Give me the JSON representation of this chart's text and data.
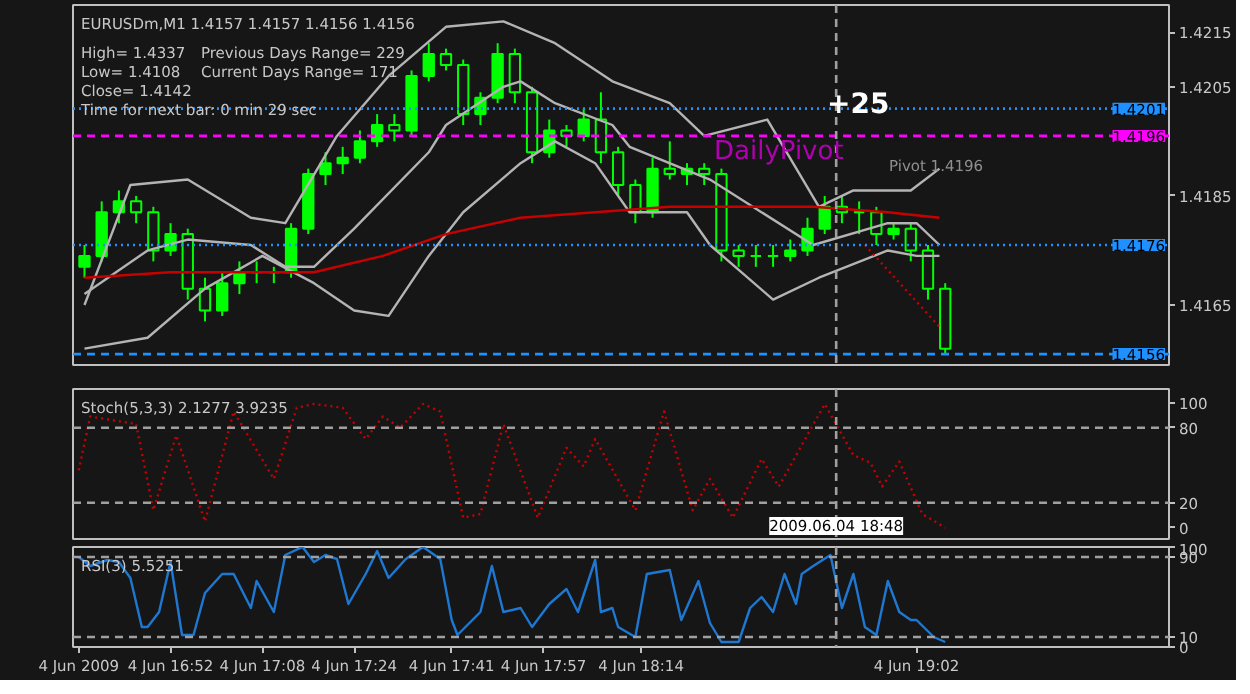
{
  "chart_data": [
    {
      "type": "candlestick",
      "title": "EURUSDm,M1  1.4157 1.4157 1.4156 1.4156",
      "color": "#00ff00",
      "annotations": [
        "High= 1.4337",
        "Previous Days Range= 229",
        "Low= 1.4108",
        "Current Days Range= 171",
        "Close= 1.4142",
        "Time for next bar: 0 min 29 sec",
        "+25",
        "Pivot 1.4196",
        {
          "text": "DailyPivot",
          "x": "2009-06-04T18:38",
          "y": 1.4193
        }
      ],
      "x": [
        "2009-06-04T16:37",
        "2009-06-04T16:40",
        "2009-06-04T16:43",
        "2009-06-04T16:46",
        "2009-06-04T16:49",
        "2009-06-04T16:52",
        "2009-06-04T16:55",
        "2009-06-04T16:58",
        "2009-06-04T17:01",
        "2009-06-04T17:04",
        "2009-06-04T17:07",
        "2009-06-04T17:10",
        "2009-06-04T17:13",
        "2009-06-04T17:16",
        "2009-06-04T17:19",
        "2009-06-04T17:22",
        "2009-06-04T17:25",
        "2009-06-04T17:28",
        "2009-06-04T17:31",
        "2009-06-04T17:34",
        "2009-06-04T17:37",
        "2009-06-04T17:40",
        "2009-06-04T17:43",
        "2009-06-04T17:46",
        "2009-06-04T17:49",
        "2009-06-04T17:52",
        "2009-06-04T17:55",
        "2009-06-04T17:58",
        "2009-06-04T18:01",
        "2009-06-04T18:04",
        "2009-06-04T18:07",
        "2009-06-04T18:10",
        "2009-06-04T18:13",
        "2009-06-04T18:16",
        "2009-06-04T18:19",
        "2009-06-04T18:22",
        "2009-06-04T18:25",
        "2009-06-04T18:28",
        "2009-06-04T18:31",
        "2009-06-04T18:34",
        "2009-06-04T18:37",
        "2009-06-04T18:40",
        "2009-06-04T18:43",
        "2009-06-04T18:46",
        "2009-06-04T18:49",
        "2009-06-04T18:52",
        "2009-06-04T18:55",
        "2009-06-04T18:58",
        "2009-06-04T19:01",
        "2009-06-04T19:04",
        "2009-06-04T19:07"
      ],
      "ohlc": [
        [
          1.4172,
          1.4176,
          1.417,
          1.4174
        ],
        [
          1.4174,
          1.4184,
          1.4173,
          1.4182
        ],
        [
          1.4182,
          1.4186,
          1.418,
          1.4184
        ],
        [
          1.4184,
          1.4185,
          1.418,
          1.4182
        ],
        [
          1.4182,
          1.4183,
          1.4173,
          1.4175
        ],
        [
          1.4175,
          1.418,
          1.4174,
          1.4178
        ],
        [
          1.4178,
          1.4179,
          1.4166,
          1.4168
        ],
        [
          1.4168,
          1.417,
          1.4162,
          1.4164
        ],
        [
          1.4164,
          1.4171,
          1.4163,
          1.4169
        ],
        [
          1.4169,
          1.4173,
          1.4167,
          1.4171
        ],
        [
          1.4171,
          1.4173,
          1.4169,
          1.4171
        ],
        [
          1.4171,
          1.4172,
          1.4169,
          1.4171
        ],
        [
          1.4171,
          1.418,
          1.417,
          1.4179
        ],
        [
          1.4179,
          1.419,
          1.4178,
          1.4189
        ],
        [
          1.4189,
          1.4193,
          1.4187,
          1.4191
        ],
        [
          1.4191,
          1.4194,
          1.4189,
          1.4192
        ],
        [
          1.4192,
          1.4197,
          1.4191,
          1.4195
        ],
        [
          1.4195,
          1.42,
          1.4194,
          1.4198
        ],
        [
          1.4198,
          1.42,
          1.4195,
          1.4197
        ],
        [
          1.4197,
          1.4208,
          1.4196,
          1.4207
        ],
        [
          1.4207,
          1.4213,
          1.4206,
          1.4211
        ],
        [
          1.4211,
          1.4212,
          1.4208,
          1.4209
        ],
        [
          1.4209,
          1.421,
          1.4198,
          1.42
        ],
        [
          1.42,
          1.4204,
          1.4198,
          1.4203
        ],
        [
          1.4203,
          1.4213,
          1.4202,
          1.4211
        ],
        [
          1.4211,
          1.4212,
          1.4202,
          1.4204
        ],
        [
          1.4204,
          1.4205,
          1.4191,
          1.4193
        ],
        [
          1.4193,
          1.4199,
          1.4192,
          1.4197
        ],
        [
          1.4197,
          1.4198,
          1.4194,
          1.4196
        ],
        [
          1.4196,
          1.4201,
          1.4195,
          1.4199
        ],
        [
          1.4199,
          1.4204,
          1.4191,
          1.4193
        ],
        [
          1.4193,
          1.4194,
          1.4185,
          1.4187
        ],
        [
          1.4187,
          1.4188,
          1.418,
          1.4182
        ],
        [
          1.4182,
          1.4192,
          1.4181,
          1.419
        ],
        [
          1.419,
          1.4195,
          1.4188,
          1.4189
        ],
        [
          1.4189,
          1.4191,
          1.4187,
          1.419
        ],
        [
          1.419,
          1.4191,
          1.4187,
          1.4189
        ],
        [
          1.4189,
          1.419,
          1.4173,
          1.4175
        ],
        [
          1.4175,
          1.4176,
          1.4172,
          1.4174
        ],
        [
          1.4174,
          1.4176,
          1.4172,
          1.4174
        ],
        [
          1.4174,
          1.4176,
          1.4172,
          1.4174
        ],
        [
          1.4174,
          1.4177,
          1.4173,
          1.4175
        ],
        [
          1.4175,
          1.4181,
          1.4174,
          1.4179
        ],
        [
          1.4179,
          1.4185,
          1.4178,
          1.4183
        ],
        [
          1.4183,
          1.4185,
          1.418,
          1.4182
        ],
        [
          1.4182,
          1.4184,
          1.4178,
          1.4182
        ],
        [
          1.4182,
          1.4183,
          1.4176,
          1.4178
        ],
        [
          1.4178,
          1.418,
          1.4177,
          1.4179
        ],
        [
          1.4179,
          1.418,
          1.4173,
          1.4175
        ],
        [
          1.4175,
          1.4176,
          1.4166,
          1.4168
        ],
        [
          1.4168,
          1.4169,
          1.4156,
          1.4157
        ]
      ],
      "series": [
        {
          "type": "line",
          "color": "#b4b4b4",
          "x": [
            "2009-06-04T16:37",
            "2009-06-04T16:45",
            "2009-06-04T16:55",
            "2009-06-04T17:06",
            "2009-06-04T17:12",
            "2009-06-04T17:21",
            "2009-06-04T17:30",
            "2009-06-04T17:40",
            "2009-06-04T17:50",
            "2009-06-04T17:59",
            "2009-06-04T18:09",
            "2009-06-04T18:19",
            "2009-06-04T18:25",
            "2009-06-04T18:36",
            "2009-06-04T18:45",
            "2009-06-04T18:51",
            "2009-06-04T19:01",
            "2009-06-04T19:06"
          ],
          "values": [
            1.4165,
            1.4187,
            1.4188,
            1.4181,
            1.418,
            1.4196,
            1.4207,
            1.4216,
            1.4217,
            1.4213,
            1.4206,
            1.4202,
            1.4196,
            1.4199,
            1.4183,
            1.4186,
            1.4186,
            1.419
          ]
        },
        {
          "type": "line",
          "color": "#b4b4b4",
          "x": [
            "2009-06-04T16:37",
            "2009-06-04T16:48",
            "2009-06-04T16:55",
            "2009-06-04T17:06",
            "2009-06-04T17:12",
            "2009-06-04T17:17",
            "2009-06-04T17:24",
            "2009-06-04T17:37",
            "2009-06-04T17:40",
            "2009-06-04T17:50",
            "2009-06-04T17:53",
            "2009-06-04T17:59",
            "2009-06-04T18:09",
            "2009-06-04T18:12",
            "2009-06-04T18:26",
            "2009-06-04T18:44",
            "2009-06-04T18:57",
            "2009-06-04T19:02",
            "2009-06-04T19:06"
          ],
          "values": [
            1.4167,
            1.4175,
            1.4177,
            1.4176,
            1.4172,
            1.4172,
            1.4179,
            1.4193,
            1.4198,
            1.4205,
            1.4206,
            1.4202,
            1.4198,
            1.4194,
            1.4188,
            1.4176,
            1.418,
            1.418,
            1.4176
          ]
        },
        {
          "type": "line",
          "color": "#b4b4b4",
          "x": [
            "2009-06-04T16:37",
            "2009-06-04T16:48",
            "2009-06-04T16:58",
            "2009-06-04T17:08",
            "2009-06-04T17:17",
            "2009-06-04T17:24",
            "2009-06-04T17:30",
            "2009-06-04T17:37",
            "2009-06-04T17:43",
            "2009-06-04T17:53",
            "2009-06-04T17:59",
            "2009-06-04T18:06",
            "2009-06-04T18:12",
            "2009-06-04T18:22",
            "2009-06-04T18:26",
            "2009-06-04T18:37",
            "2009-06-04T18:45",
            "2009-06-04T18:57",
            "2009-06-04T19:02",
            "2009-06-04T19:06"
          ],
          "values": [
            1.4157,
            1.4159,
            1.4168,
            1.4174,
            1.4169,
            1.4164,
            1.4163,
            1.4174,
            1.4182,
            1.4191,
            1.4195,
            1.4191,
            1.4182,
            1.4182,
            1.4176,
            1.4166,
            1.417,
            1.4175,
            1.4174,
            1.4174
          ]
        },
        {
          "type": "line",
          "color": "#c80000",
          "x": [
            "2009-06-04T16:37",
            "2009-06-04T16:52",
            "2009-06-04T17:08",
            "2009-06-04T17:17",
            "2009-06-04T17:29",
            "2009-06-04T17:40",
            "2009-06-04T17:53",
            "2009-06-04T18:06",
            "2009-06-04T18:19",
            "2009-06-04T18:28",
            "2009-06-04T18:44",
            "2009-06-04T18:57",
            "2009-06-04T19:06"
          ],
          "values": [
            1.417,
            1.4171,
            1.4171,
            1.4171,
            1.4174,
            1.4178,
            1.4181,
            1.4182,
            1.4183,
            1.4183,
            1.4183,
            1.4182,
            1.4181
          ]
        },
        {
          "type": "line",
          "color": "#c80000",
          "line_style": "dotted",
          "x": [
            "2009-06-04T18:53",
            "2009-06-04T19:06"
          ],
          "values": [
            1.4176,
            1.4161
          ]
        }
      ],
      "xlim": [
        "2009-06-04T16:35",
        "2009-06-04T19:46"
      ],
      "ylim": [
        1.4154,
        1.422
      ],
      "yticks": [
        1.4165,
        1.4185,
        1.4205,
        1.4215
      ],
      "tick_labels": "y",
      "ref_lines": [
        {
          "axis": "y",
          "value": 1.4201,
          "label": "1.4201",
          "color": "#1e90ff",
          "line_style": "dotted"
        },
        {
          "axis": "y",
          "value": 1.4196,
          "label": "1.4196",
          "color": "#ff00ff",
          "line_style": "dashed"
        },
        {
          "axis": "y",
          "value": 1.4176,
          "label": "1.4176",
          "color": "#1e90ff",
          "line_style": "dotted"
        },
        {
          "axis": "y",
          "value": 1.4156,
          "label": "1.4156",
          "color": "#1e90ff",
          "line_style": "dashed"
        },
        {
          "axis": "x",
          "value": "2009-06-04T18:48",
          "color": "#a0a0a0",
          "line_style": "dashed"
        }
      ]
    },
    {
      "type": "line",
      "title": "Stoch(5,3,3) 2.1277 3.9235",
      "series": [
        {
          "color": "#c80000",
          "line_style": "dotted",
          "x": [
            "2009-06-04T16:36",
            "2009-06-04T16:38",
            "2009-06-04T16:46",
            "2009-06-04T16:49",
            "2009-06-04T16:53",
            "2009-06-04T16:58",
            "2009-06-04T17:03",
            "2009-06-04T17:10",
            "2009-06-04T17:14",
            "2009-06-04T17:17",
            "2009-06-04T17:22",
            "2009-06-04T17:26",
            "2009-06-04T17:29",
            "2009-06-04T17:32",
            "2009-06-04T17:36",
            "2009-06-04T17:39",
            "2009-06-04T17:43",
            "2009-06-04T17:46",
            "2009-06-04T17:50",
            "2009-06-04T17:56",
            "2009-06-04T18:01",
            "2009-06-04T18:04",
            "2009-06-04T18:06",
            "2009-06-04T18:13",
            "2009-06-04T18:18",
            "2009-06-04T18:23",
            "2009-06-04T18:26",
            "2009-06-04T18:30",
            "2009-06-04T18:35",
            "2009-06-04T18:38",
            "2009-06-04T18:46",
            "2009-06-04T18:51",
            "2009-06-04T18:54",
            "2009-06-04T18:56",
            "2009-06-04T18:59",
            "2009-06-04T19:03",
            "2009-06-04T19:07"
          ],
          "values": [
            46,
            89,
            83,
            14,
            74,
            5,
            93,
            39,
            96,
            99,
            96,
            71,
            89,
            80,
            99,
            93,
            8,
            11,
            83,
            8,
            64,
            49,
            71,
            14,
            93,
            14,
            39,
            8,
            55,
            33,
            99,
            58,
            52,
            33,
            53,
            11,
            0
          ]
        }
      ],
      "xlim": [
        "2009-06-04T16:35",
        "2009-06-04T19:46"
      ],
      "ylim": [
        -9,
        111
      ],
      "yticks": [
        0,
        20,
        80,
        100
      ],
      "tick_labels": "y",
      "ref_lines": [
        {
          "axis": "y",
          "value": 80,
          "color": "#a0a0a0",
          "line_style": "dashed"
        },
        {
          "axis": "y",
          "value": 20,
          "color": "#a0a0a0",
          "line_style": "dashed"
        },
        {
          "axis": "x",
          "value": "2009-06-04T18:48",
          "label": "2009.06.04 18:48",
          "color": "#a0a0a0",
          "line_style": "dashed"
        }
      ]
    },
    {
      "type": "line",
      "title": "RSI(3) 5.5251",
      "series": [
        {
          "color": "#1e78d2",
          "x": [
            "2009-06-04T16:36",
            "2009-06-04T16:38",
            "2009-06-04T16:41",
            "2009-06-04T16:43",
            "2009-06-04T16:45",
            "2009-06-04T16:47",
            "2009-06-04T16:48",
            "2009-06-04T16:50",
            "2009-06-04T16:52",
            "2009-06-04T16:54",
            "2009-06-04T16:56",
            "2009-06-04T16:58",
            "2009-06-04T17:01",
            "2009-06-04T17:03",
            "2009-06-04T17:06",
            "2009-06-04T17:07",
            "2009-06-04T17:10",
            "2009-06-04T17:12",
            "2009-06-04T17:15",
            "2009-06-04T17:17",
            "2009-06-04T17:19",
            "2009-06-04T17:21",
            "2009-06-04T17:23",
            "2009-06-04T17:26",
            "2009-06-04T17:28",
            "2009-06-04T17:30",
            "2009-06-04T17:33",
            "2009-06-04T17:36",
            "2009-06-04T17:39",
            "2009-06-04T17:41",
            "2009-06-04T17:42",
            "2009-06-04T17:46",
            "2009-06-04T17:48",
            "2009-06-04T17:50",
            "2009-06-04T17:53",
            "2009-06-04T17:55",
            "2009-06-04T17:58",
            "2009-06-04T18:01",
            "2009-06-04T18:03",
            "2009-06-04T18:06",
            "2009-06-04T18:07",
            "2009-06-04T18:09",
            "2009-06-04T18:10",
            "2009-06-04T18:13",
            "2009-06-04T18:15",
            "2009-06-04T18:19",
            "2009-06-04T18:21",
            "2009-06-04T18:24",
            "2009-06-04T18:26",
            "2009-06-04T18:28",
            "2009-06-04T18:31",
            "2009-06-04T18:33",
            "2009-06-04T18:35",
            "2009-06-04T18:37",
            "2009-06-04T18:39",
            "2009-06-04T18:41",
            "2009-06-04T18:42",
            "2009-06-04T18:44",
            "2009-06-04T18:47",
            "2009-06-04T18:49",
            "2009-06-04T18:51",
            "2009-06-04T18:53",
            "2009-06-04T18:55",
            "2009-06-04T18:57",
            "2009-06-04T18:59",
            "2009-06-04T19:01",
            "2009-06-04T19:02",
            "2009-06-04T19:05",
            "2009-06-04T19:07"
          ],
          "values": [
            90,
            81,
            87,
            85,
            69,
            20,
            20,
            35,
            85,
            12,
            12,
            54,
            73,
            73,
            39,
            66,
            35,
            92,
            100,
            85,
            92,
            88,
            43,
            73,
            96,
            69,
            88,
            100,
            88,
            27,
            12,
            35,
            81,
            35,
            39,
            20,
            43,
            58,
            35,
            87,
            35,
            39,
            20,
            10,
            73,
            77,
            27,
            66,
            24,
            5,
            5,
            39,
            50,
            35,
            73,
            43,
            73,
            81,
            92,
            39,
            73,
            20,
            12,
            66,
            35,
            27,
            27,
            10,
            5
          ]
        }
      ],
      "xlim": [
        "2009-06-04T16:35",
        "2009-06-04T19:46"
      ],
      "ylim": [
        0,
        100
      ],
      "yticks": [
        0,
        10,
        90,
        100
      ],
      "xticks": [
        {
          "value": "2009-06-04T16:36",
          "label": "4 Jun 2009"
        },
        {
          "value": "2009-06-04T16:52",
          "label": "4 Jun 16:52"
        },
        {
          "value": "2009-06-04T17:08",
          "label": "4 Jun 17:08"
        },
        {
          "value": "2009-06-04T17:24",
          "label": "4 Jun 17:24"
        },
        {
          "value": "2009-06-04T17:41",
          "label": "4 Jun 17:41"
        },
        {
          "value": "2009-06-04T17:57",
          "label": "4 Jun 17:57"
        },
        {
          "value": "2009-06-04T18:14",
          "label": "4 Jun 18:14"
        },
        {
          "value": "2009-06-04T19:02",
          "label": "4 Jun 19:02"
        }
      ],
      "ref_lines": [
        {
          "axis": "y",
          "value": 90,
          "color": "#a0a0a0",
          "line_style": "dashed"
        },
        {
          "axis": "y",
          "value": 10,
          "color": "#a0a0a0",
          "line_style": "dashed"
        },
        {
          "axis": "x",
          "value": "2009-06-04T18:48",
          "color": "#a0a0a0",
          "line_style": "dashed"
        }
      ]
    }
  ]
}
